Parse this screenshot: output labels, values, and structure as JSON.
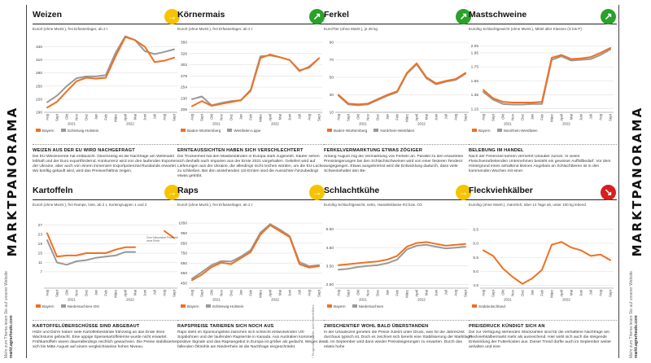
{
  "left_bar": {
    "title": "MARKTPANORAMA",
    "line1": "Mehr zum Thema lesen Sie auf unserer Website",
    "line2": "markt.agrarheute.com"
  },
  "right_bar": {
    "title": "MARKTPANORAMA",
    "line1": "Mehr zum Thema lesen Sie auf unserer Website",
    "line2": "markt.agrarheute.com"
  },
  "footnote": "* Prognose; Quelle: AMI GmbH/Biere",
  "colors": {
    "orange": "#f07020",
    "gray": "#999999",
    "yellow": "#f5c400",
    "green": "#2aa12a",
    "red": "#d81e1e"
  },
  "panels": [
    {
      "title": "Weizen",
      "trend": "sideways",
      "trend_icon": "right-arrow-icon",
      "trend_color": "#f5c400",
      "unit": "Euro/t (ohne MwSt.), frei Erfasserlager, ab 2 t",
      "legend": [
        "Bayern",
        "Schleswig-Holstein"
      ],
      "story_title": "WEIZEN AUS DER EU WIRD NACHGEFRAGT",
      "story": "Die EU-Weizenernte hat enttäuscht. Gleichzeitig ist die Nachfrage am Weltmarkt lebhaft und der Euro exportfördernd. Konkurrenz wird von den laufenden Exporten der Ukraine, aber auch von einem immensen Exportpotenzial Russlands erwartet. Wo künftig gekauft wird, wird das Preisverhältnis zeigen.",
      "chart_data": {
        "type": "line",
        "x": [
          "Aug",
          "Sept",
          "Okt",
          "Nov",
          "Dez",
          "Jan",
          "Feb",
          "März",
          "April",
          "Mai",
          "Juni",
          "Juli",
          "Aug",
          "Sept"
        ],
        "years": [
          "2021",
          "2022"
        ],
        "ylim": [
          190,
          350
        ],
        "yticks": [
          "190",
          "220",
          "250",
          "280",
          "310",
          "340"
        ],
        "series": [
          {
            "name": "Bayern",
            "values": [
              201,
              214,
              238,
              261,
              269,
              267,
              269,
              318,
              362,
              355,
              340,
              305,
              308,
              315
            ]
          },
          {
            "name": "Schleswig-Holstein",
            "values": [
              213,
              228,
              250,
              268,
              272,
              272,
              275,
              326,
              364,
              355,
              330,
              323,
              328,
              334
            ]
          }
        ]
      }
    },
    {
      "title": "Körnermais",
      "trend": "up",
      "trend_icon": "up-right-arrow-icon",
      "trend_color": "#2aa12a",
      "unit": "Euro/t (ohne MwSt.), frei Erfasserlager, ab 2 t",
      "legend": [
        "Baden-Württemberg",
        "Westfalen-Lippe"
      ],
      "story_title": "ERNTEAUSSICHTEN HABEN SICH VERSCHLECHTERT",
      "story": "Die Trockenheit hat den Maisbeständen in Europa stark zugesetzt. Käufer sehen sich deshalb nach Importen aus der Ernte 2021 vorgehalten. Geliefert wird auf Lieferungen aus der Ukraine, die allerdings nicht reichen würden, um die EU-Lücke zu schließen. Bei den anstehenden US-Ernten sind die Aussichten hinzubedingt etwas getrübt.",
      "chart_data": {
        "type": "line",
        "x": [
          "Aug",
          "Sept",
          "Okt",
          "Nov",
          "Dez",
          "Jan",
          "Feb",
          "März",
          "April",
          "Mai",
          "Juni",
          "Juli",
          "Aug",
          "Sept"
        ],
        "years": [
          "2021",
          "2022"
        ],
        "ylim": [
          200,
          350
        ],
        "yticks": [
          "206",
          "230",
          "254",
          "278",
          "302",
          "326",
          "350"
        ],
        "series": [
          {
            "name": "Baden-Württemberg",
            "values": [
              213,
              224,
              214,
              218,
              222,
              226,
              246,
              316,
              324,
              318,
              312,
              290,
              296,
              316
            ]
          },
          {
            "name": "Westfalen-Lippe",
            "values": [
              228,
              234,
              215,
              220,
              224,
              226,
              248,
              320,
              322,
              318,
              312,
              288,
              298,
              316
            ]
          }
        ]
      }
    },
    {
      "title": "Ferkel",
      "trend": "up",
      "trend_icon": "up-right-arrow-icon",
      "trend_color": "#2aa12a",
      "unit": "Euro/Tier (ohne MwSt.), je 28 kg",
      "legend": [
        "Baden-Württemberg",
        "Nordrhein-Westfalen"
      ],
      "story_title": "FERKELVERMARKTUNG ETWAS ZÖGIGER",
      "story": "Anfang August zog die Vermarktung von Ferkeln an. Parallel zu den erwarteten Preissteigerungen bei den Schlachtschweinen wird von einer festeren Tendenz ausgegangen. Etwas ausgebremst wird die Entwicklung dadurch, dass viele Schweinehalter den Be-",
      "chart_data": {
        "type": "line",
        "x": [
          "Aug",
          "Sept",
          "Okt",
          "Nov",
          "Dez",
          "Jan",
          "Feb",
          "März",
          "April",
          "Mai",
          "Juni",
          "Juli",
          "Aug",
          "Sept"
        ],
        "years": [
          "2021",
          "2022"
        ],
        "ylim": [
          10,
          90
        ],
        "yticks": [
          "10",
          "30",
          "50",
          "70",
          "90"
        ],
        "series": [
          {
            "name": "Baden-Württemberg",
            "values": [
              30,
              20,
              19,
              20,
              25,
              30,
              34,
              55,
              66,
              50,
              43,
              46,
              48,
              55
            ]
          },
          {
            "name": "Nordrhein-Westfalen",
            "values": [
              29,
              19,
              18,
              19,
              24,
              29,
              33,
              54,
              65,
              49,
              42,
              45,
              47,
              54
            ]
          }
        ]
      }
    },
    {
      "title": "Mastschweine",
      "trend": "up",
      "trend_icon": "up-right-arrow-icon",
      "trend_color": "#2aa12a",
      "unit": "Euro/kg Schlachtgewicht (ohne MwSt.), Mittel aller Klassen (S bis P)",
      "legend": [
        "Bayern",
        "Nordrhein-Westfalen"
      ],
      "story_title": "BELEBUNG IM HANDEL",
      "story": "Nach der Ferienzeit kehren vermehrt Urlauber zurück. In vielen Fleischverarbeitenden Unternehmen besteht ein gewisser Auffüllbedarf. Vor dem Hintergrund eines anhaltend kleinen Angebots an Schlachttieren ist in den kommenden Wochen mit einer",
      "chart_data": {
        "type": "line",
        "x": [
          "Aug",
          "Sept",
          "Okt",
          "Nov",
          "Dez",
          "Jan",
          "Feb",
          "März",
          "April",
          "Mai",
          "Juni",
          "Juli",
          "Aug",
          "Sept"
        ],
        "years": [
          "2021",
          "2022"
        ],
        "ylim": [
          1.1,
          2.1
        ],
        "yticks": [
          "1.15",
          "1.35",
          "1.55",
          "1.75",
          "1.95",
          "2.05"
        ],
        "series": [
          {
            "name": "Bayern",
            "values": [
              1.42,
              1.3,
              1.25,
              1.24,
              1.24,
              1.24,
              1.25,
              1.88,
              1.92,
              1.86,
              1.87,
              1.89,
              1.95,
              2.02
            ]
          },
          {
            "name": "Nordrhein-Westfalen",
            "values": [
              1.39,
              1.28,
              1.22,
              1.21,
              1.21,
              1.22,
              1.22,
              1.85,
              1.9,
              1.84,
              1.85,
              1.86,
              1.92,
              2.0
            ]
          }
        ]
      }
    },
    {
      "title": "Kartoffeln",
      "trend": "sideways",
      "trend_icon": "right-arrow-icon",
      "trend_color": "#f5c400",
      "unit": "Euro/t (ohne MwSt.), frei Rampe, lose, ab 2 t, Sortengruppen 1 und 2",
      "legend": [
        "Bayern",
        "Niedersachsen-Ost"
      ],
      "note": "Zum Saisonstart Preise für neue Ernte",
      "story_title": "KARTOFFELÜBERSCHÜSSE SIND ABGEBAUT",
      "story": "Hitze und Dürre haben viele Kartoffelbestände frühzeitig an das Ende ihres Wachstums gebracht. Eine uppige Speisekartoffelernte wurde nicht erwartet. Frühkartoffeln waren dauerallerdings reichlich gewachsen. Die Preise stabilisierten sich bis Mitte August auf einem vergleichsweise hohen Niveau.",
      "chart_data": {
        "type": "line",
        "x": [
          "Aug",
          "Sept",
          "Okt",
          "Nov",
          "Dez",
          "Jan",
          "Feb",
          "März",
          "April",
          "Mai",
          "Juni",
          "Juli",
          "Aug",
          "Sept"
        ],
        "years": [
          "2021",
          "2022"
        ],
        "ylim": [
          0,
          30
        ],
        "yticks": [
          "7",
          "11",
          "15",
          "19",
          "23",
          "27"
        ],
        "series": [
          {
            "name": "Bayern",
            "values": [
              23.5,
              13.5,
              14,
              14,
              15,
              15,
              15,
              16.5,
              17.5,
              17.5,
              null,
              null,
              24.5,
              21.5
            ]
          },
          {
            "name": "Niedersachsen-Ost",
            "values": [
              20.5,
              11,
              10,
              11.5,
              12,
              13,
              13.5,
              14,
              15.5,
              15.5,
              null,
              null,
              null,
              null
            ]
          }
        ]
      }
    },
    {
      "title": "Raps",
      "trend": "sideways",
      "trend_icon": "right-arrow-icon",
      "trend_color": "#f5c400",
      "unit": "Euro/t (ohne MwSt.), frei Erfasserlager, ab 2 t",
      "legend": [
        "Bayern",
        "Schleswig-Holstein"
      ],
      "story_title": "RAPSPREISE TARIEREN SICH NOCH AUS",
      "story": "Raps steht im Spannungsfeld zwischen sich schlecht entwickelnden US-Sojabohnen und der laufenden Rapsernte in Kanada. Aus Australien kommen positive Signale und das Rapsangebot in Europa ist größer als gedacht. Wegen der fallenden Ölmühle am Niederrhein ist die Nachfrage eingeschränkt.",
      "chart_data": {
        "type": "line",
        "x": [
          "Aug",
          "Sept",
          "Okt",
          "Nov",
          "Dez",
          "Jan",
          "Feb",
          "März",
          "April",
          "Mai",
          "Juni",
          "Juli",
          "Aug",
          "Sept"
        ],
        "years": [
          "2021",
          "2022"
        ],
        "ylim": [
          400,
          1100
        ],
        "yticks": [
          "450",
          "550",
          "650",
          "750",
          "850",
          "950",
          "1050"
        ],
        "series": [
          {
            "name": "Bayern",
            "values": [
              480,
              535,
              610,
              655,
              640,
              700,
              760,
              935,
              1030,
              970,
              910,
              640,
              605,
              620
            ]
          },
          {
            "name": "Schleswig-Holstein",
            "values": [
              495,
              560,
              630,
              670,
              665,
              715,
              780,
              955,
              1040,
              985,
              920,
              660,
              620,
              630
            ]
          }
        ]
      }
    },
    {
      "title": "Schlachtkühe",
      "trend": "sideways",
      "trend_icon": "right-arrow-icon",
      "trend_color": "#f5c400",
      "unit": "Euro/kg Schlachtgewicht, netto, Handelsklasse R3 bzw. O3",
      "legend": [
        "Bayern",
        "Niedersachsen"
      ],
      "story_title": "ZWISCHENTIEF WOHL BALD ÜBERSTANDEN",
      "story": "In der Urlaubszeit gerieten die Preise zuletzt unter Druck, was für die Jahreszeit durchaus typisch ist. Doch es zeichnet sich bereits eine Stabilisierung der Marktlage ab. Im September wird dann wieder Preissteigerungen zu erwarten. Durch das relativ hohe",
      "chart_data": {
        "type": "line",
        "x": [
          "Aug",
          "Sept",
          "Okt",
          "Nov",
          "Dez",
          "Jan",
          "Feb",
          "März",
          "April",
          "Mai",
          "Juni",
          "Juli",
          "Aug",
          "Sept"
        ],
        "years": [
          "2021",
          "2022"
        ],
        "ylim": [
          2.3,
          6.1
        ],
        "yticks": [
          "2.50",
          "3.50",
          "4.50",
          "5.50"
        ],
        "series": [
          {
            "name": "Bayern",
            "values": [
              3.55,
              3.6,
              3.65,
              3.7,
              3.75,
              3.85,
              4.05,
              4.55,
              4.75,
              4.8,
              4.7,
              4.6,
              4.65,
              4.7
            ]
          },
          {
            "name": "Niedersachsen",
            "values": [
              3.3,
              3.35,
              3.45,
              3.5,
              3.55,
              3.65,
              3.85,
              4.4,
              4.6,
              4.65,
              4.55,
              4.45,
              4.5,
              4.55
            ]
          }
        ]
      }
    },
    {
      "title": "Fleckviehkälber",
      "trend": "down",
      "trend_icon": "down-right-arrow-icon",
      "trend_color": "#d81e1e",
      "unit": "Euro/kg (ohne MwSt.), männlich, über 14 Tage alt, unter 100 kg lebend",
      "legend": [
        "Süddeutschland"
      ],
      "story_title": "PREISDRUCK KÜNDIGT SICH AN",
      "story": "Die zur Verfügung stehenden Stückzahlen sind für die verhaltene Nachfrage am Fleckviehkälbermarkt mehr als ausreichend. Hier wirkt sich auch die steigende Entwicklung der Futterkosten aus. Dieser Trend dürfte auch im September weiter anhalten und eine",
      "chart_data": {
        "type": "line",
        "x": [
          "Aug",
          "Sept",
          "Okt",
          "Nov",
          "Dez",
          "Jan",
          "Feb",
          "März",
          "April",
          "Mai",
          "Juni",
          "Juli",
          "Aug",
          "Sept"
        ],
        "years": [
          "2021",
          "2022"
        ],
        "ylim": [
          4.4,
          6.9
        ],
        "yticks": [
          "4.5",
          "5.0",
          "5.5",
          "6.0",
          "6.5"
        ],
        "series": [
          {
            "name": "Süddeutschland",
            "values": [
              5.75,
              5.55,
              5.1,
              4.8,
              4.55,
              4.75,
              5.05,
              5.95,
              6.05,
              5.85,
              5.75,
              5.55,
              5.6,
              5.4
            ]
          }
        ]
      }
    }
  ]
}
